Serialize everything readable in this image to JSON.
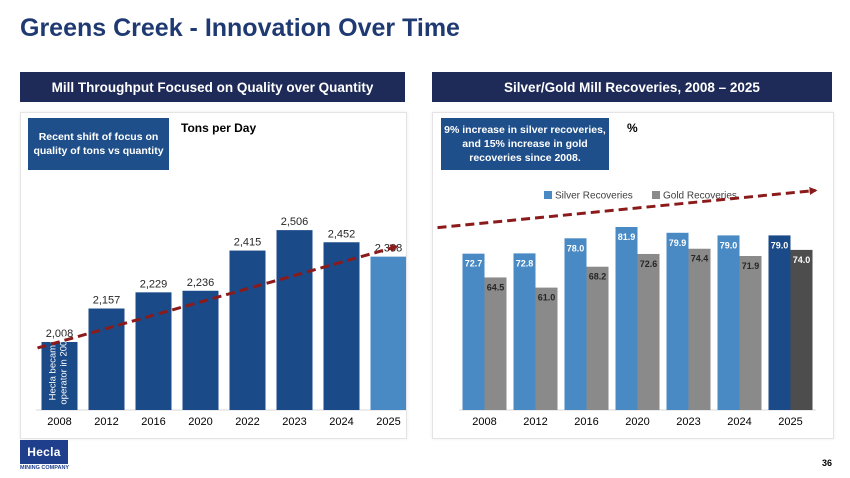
{
  "title": "Greens Creek - Innovation Over Time",
  "left_banner": "Mill Throughput Focused on Quality over Quantity",
  "right_banner": "Silver/Gold Mill Recoveries, 2008 – 2025",
  "left_callout": "Recent shift of focus on quality of tons vs quantity",
  "right_callout": "9% increase in silver recoveries, and 15% increase in gold recoveries since 2008.",
  "left_unit": "Tons per Day",
  "right_unit": "%",
  "bar_annotation": "Hecla became operator in 2008",
  "logo_text": "Hecla",
  "logo_sub": "MINING COMPANY",
  "page_number": "36",
  "colors": {
    "navy": "#1e2a57",
    "bar_dark": "#1b4a88",
    "bar_light": "#4a8ac4",
    "silver": "#4a8ac4",
    "gold": "#8a8a8a",
    "silver_2025": "#1b4a88",
    "gold_2025": "#4d4d4d",
    "trend": "#8b1a1a"
  },
  "chart_data": [
    {
      "type": "bar",
      "title": "Tons per Day",
      "categories": [
        "2008",
        "2012",
        "2016",
        "2020",
        "2022",
        "2023",
        "2024",
        "2025"
      ],
      "values": [
        2008,
        2157,
        2229,
        2236,
        2415,
        2506,
        2452,
        2388
      ],
      "value_labels": [
        "2,008",
        "2,157",
        "2,229",
        "2,236",
        "2,415",
        "2,506",
        "2,452",
        "2,388"
      ],
      "trend": "dashed upward arrow"
    },
    {
      "type": "bar",
      "title": "%",
      "categories": [
        "2008",
        "2012",
        "2016",
        "2020",
        "2023",
        "2024",
        "2025"
      ],
      "series": [
        {
          "name": "Silver Recoveries",
          "values": [
            72.7,
            72.8,
            78.0,
            81.9,
            79.9,
            79.0,
            79.0
          ]
        },
        {
          "name": "Gold Recoveries",
          "values": [
            64.5,
            61.0,
            68.2,
            72.6,
            74.4,
            71.9,
            74.0
          ]
        }
      ],
      "legend": "top",
      "trend": "dashed upward arrow"
    }
  ]
}
